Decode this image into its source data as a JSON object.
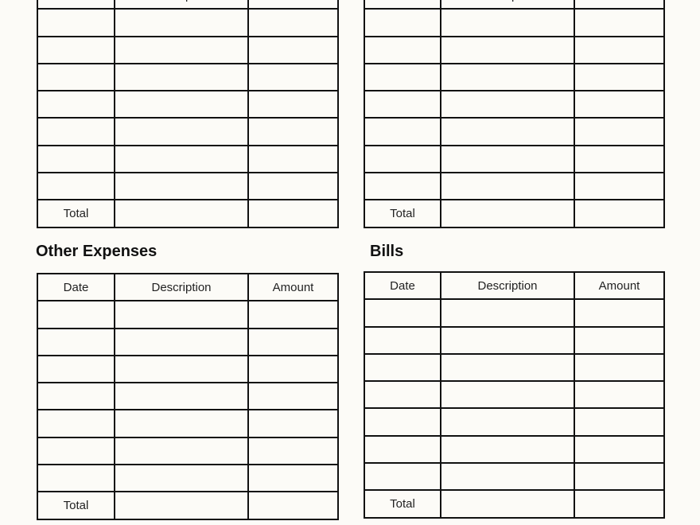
{
  "colors": {
    "background": "#fcfbf7",
    "lines": "#111111"
  },
  "columns": {
    "date": "Date",
    "description": "Description",
    "amount": "Amount"
  },
  "total_label": "Total",
  "sections": [
    {
      "title": ""
    },
    {
      "title": ""
    },
    {
      "title": "Other Expenses"
    },
    {
      "title": "Bills"
    }
  ],
  "empty_rows_per_table": 7
}
